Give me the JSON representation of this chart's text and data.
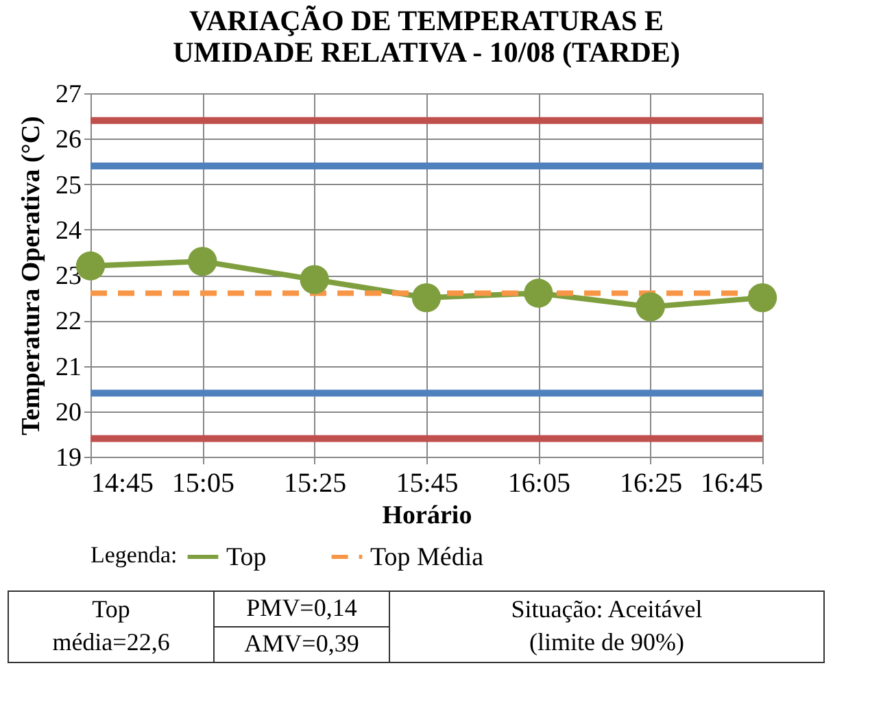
{
  "chart_data": {
    "type": "line",
    "title": "VARIAÇÃO DE TEMPERATURAS E UMIDADE RELATIVA - 10/08 (TARDE)",
    "xlabel": "Horário",
    "ylabel": "Temperatura Operativa (°C)",
    "legend_title": "Legenda:",
    "categories": [
      "14:45",
      "15:05",
      "15:25",
      "15:45",
      "16:05",
      "16:25",
      "16:45"
    ],
    "series": [
      {
        "name": "Top",
        "color": "#7f9f3f",
        "values": [
          23.2,
          23.3,
          22.9,
          22.5,
          22.6,
          22.3,
          22.5
        ],
        "marker": "circle",
        "line_style": "solid"
      },
      {
        "name": "Top Média",
        "color": "#f79646",
        "values": [
          22.6,
          22.6,
          22.6,
          22.6,
          22.6,
          22.6,
          22.6
        ],
        "marker": "none",
        "line_style": "dashed"
      }
    ],
    "ylim": [
      19,
      27
    ],
    "yticks": [
      19,
      20,
      21,
      22,
      23,
      24,
      25,
      26,
      27
    ],
    "grid": true,
    "legend": "bottom",
    "ref_lines": [
      {
        "axis": "y",
        "value": 26.4,
        "color": "#c0504d"
      },
      {
        "axis": "y",
        "value": 25.4,
        "color": "#4f81bd"
      },
      {
        "axis": "y",
        "value": 20.4,
        "color": "#4f81bd"
      },
      {
        "axis": "y",
        "value": 19.4,
        "color": "#c0504d"
      }
    ],
    "annotations": [
      "Top média=22,6",
      "PMV=0,14",
      "AMV=0,39",
      "Situação: Aceitável (limite de 90%)"
    ]
  }
}
